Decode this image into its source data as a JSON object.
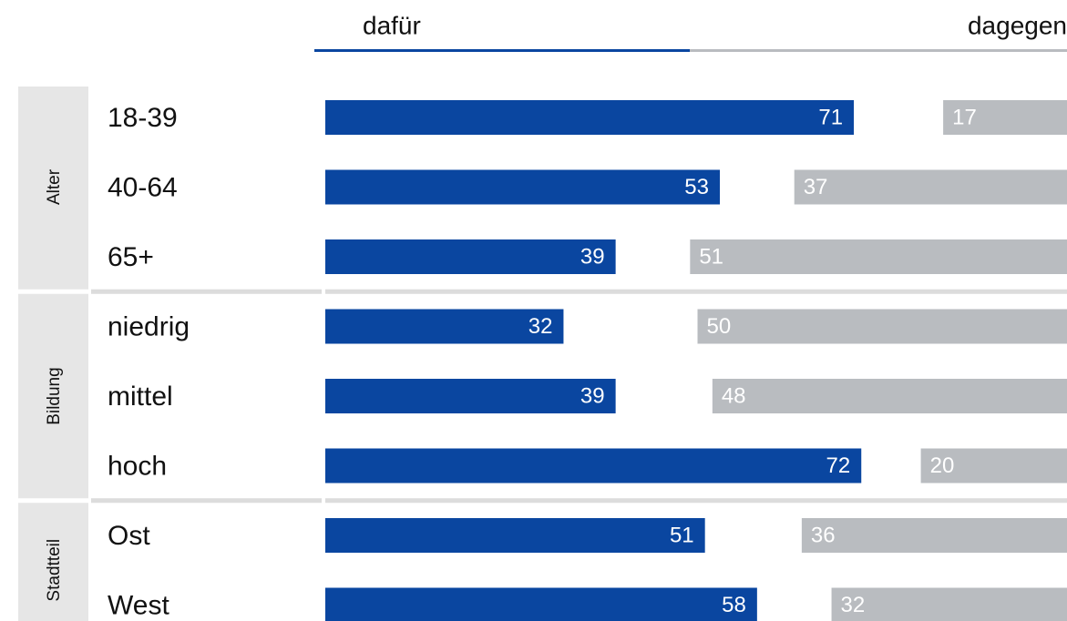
{
  "chart_data": {
    "type": "diverging-bar",
    "groups": [
      {
        "name": "Alter",
        "categories": [
          "18-39",
          "40-64",
          "65+"
        ]
      },
      {
        "name": "Bildung",
        "categories": [
          "niedrig",
          "mittel",
          "hoch"
        ]
      },
      {
        "name": "Stadtteil",
        "categories": [
          "Ost",
          "West"
        ]
      }
    ],
    "series": [
      {
        "name": "dafür",
        "color": "#0a46a0",
        "values": [
          71,
          53,
          39,
          32,
          39,
          72,
          51,
          58
        ]
      },
      {
        "name": "dagegen",
        "color": "#b9bcc0",
        "values": [
          17,
          37,
          51,
          50,
          48,
          20,
          36,
          32
        ]
      }
    ],
    "xlim": [
      0,
      100
    ]
  }
}
